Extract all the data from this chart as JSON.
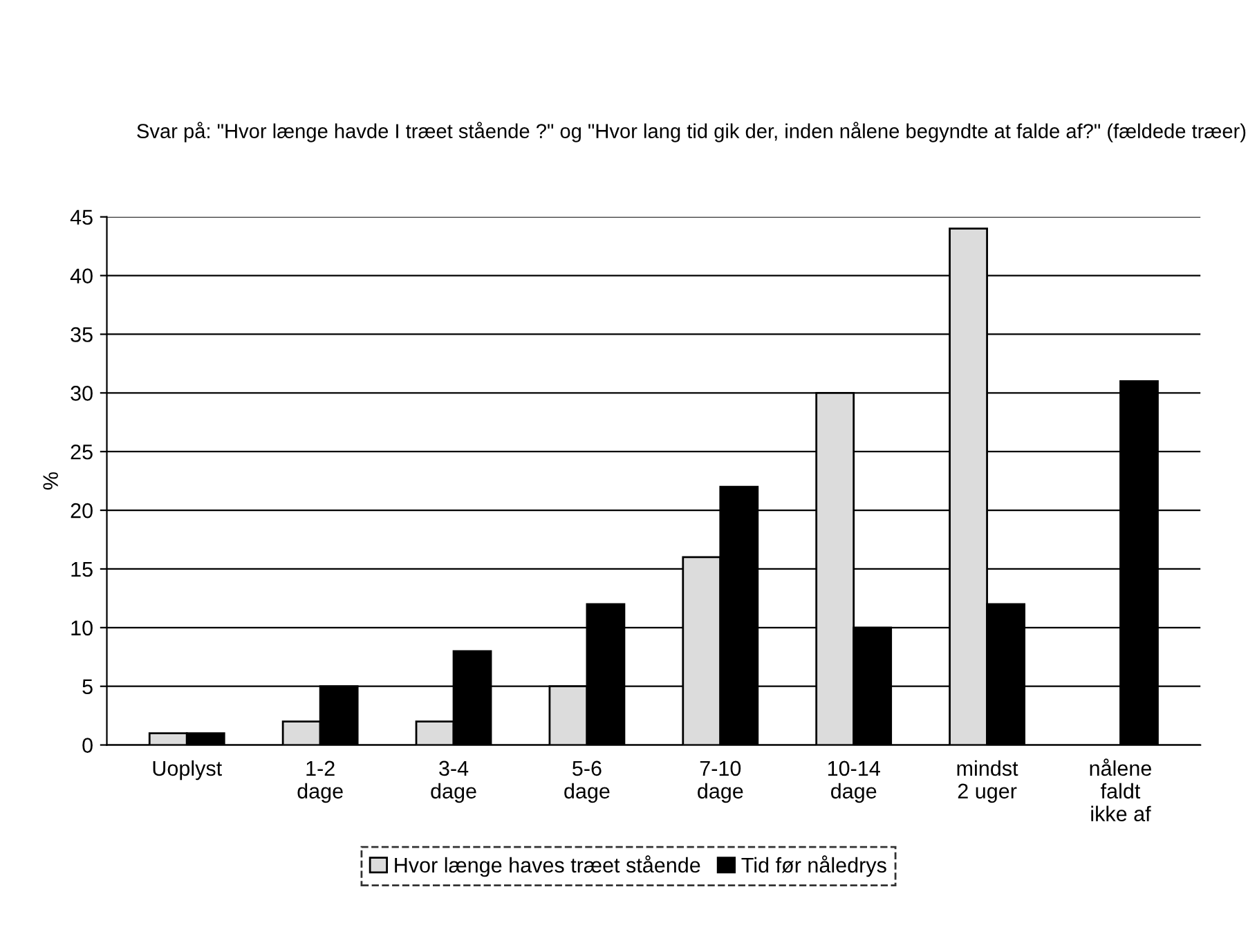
{
  "chart_data": {
    "type": "bar",
    "title": "Svar på: \"Hvor længe havde I træet stående ?\" og \"Hvor lang tid gik der, inden nålene begyndte at falde af?\" (fældede træer)",
    "ylabel": "%",
    "categories": [
      "Uoplyst",
      "1-2\ndage",
      "3-4\ndage",
      "5-6\ndage",
      "7-10\ndage",
      "10-14\ndage",
      "mindst\n2 uger",
      "nålene\nfaldt\nikke af"
    ],
    "series": [
      {
        "name": "Hvor længe haves træet stående",
        "color": "#dcdcdc",
        "values": [
          1,
          2,
          2,
          5,
          16,
          30,
          44,
          null
        ]
      },
      {
        "name": "Tid før nåledrys",
        "color": "#000000",
        "values": [
          1,
          5,
          8,
          12,
          22,
          10,
          12,
          31
        ]
      }
    ],
    "ylim": [
      0,
      45
    ],
    "yticks": [
      0,
      5,
      10,
      15,
      20,
      25,
      30,
      35,
      40,
      45
    ],
    "grid": "y",
    "legend": "bottom"
  }
}
